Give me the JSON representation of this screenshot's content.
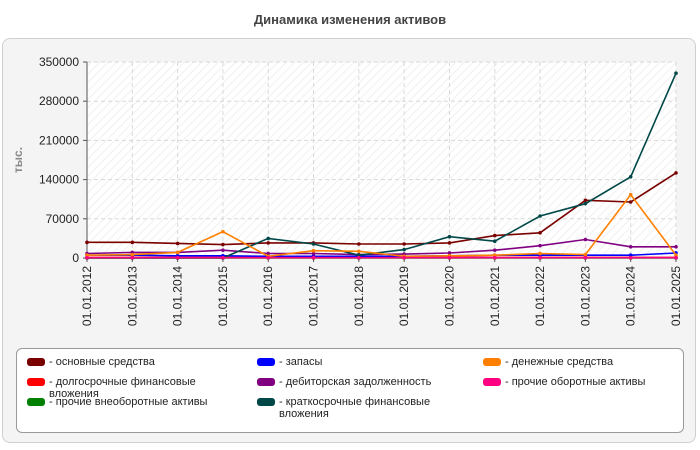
{
  "chart_data": {
    "type": "line",
    "title": "Динамика изменения активов",
    "ylabel": "тыс.",
    "xlabel": "",
    "ylim": [
      0,
      350000
    ],
    "yticks": [
      "0",
      "70000",
      "140000",
      "210000",
      "280000",
      "350000"
    ],
    "categories": [
      "01.01.2012",
      "01.01.2013",
      "01.01.2014",
      "01.01.2015",
      "01.01.2016",
      "01.01.2017",
      "01.01.2018",
      "01.01.2019",
      "01.01.2020",
      "01.01.2021",
      "01.01.2022",
      "01.01.2023",
      "01.01.2024",
      "01.01.2025"
    ],
    "grid": true,
    "legend_position": "bottom",
    "series": [
      {
        "name": "- основные средства",
        "color": "#7a0000",
        "values": [
          28000,
          28000,
          26000,
          24000,
          27000,
          27000,
          25000,
          25000,
          27000,
          40000,
          45000,
          103000,
          100000,
          152000
        ]
      },
      {
        "name": "- долгосрочные финансовые вложения",
        "color": "#ff0000",
        "values": [
          1000,
          1000,
          1000,
          1000,
          1000,
          1000,
          1000,
          1000,
          1000,
          1000,
          1000,
          1000,
          1000,
          1000
        ]
      },
      {
        "name": "- прочие внеоборотные активы",
        "color": "#008000",
        "values": [
          0,
          0,
          0,
          0,
          0,
          0,
          0,
          0,
          0,
          0,
          0,
          0,
          0,
          0
        ]
      },
      {
        "name": "- запасы",
        "color": "#0000ff",
        "values": [
          5000,
          5000,
          4000,
          4000,
          3000,
          3000,
          3000,
          3000,
          4000,
          5000,
          5000,
          5000,
          5000,
          9000
        ]
      },
      {
        "name": "- дебиторская задолженность",
        "color": "#800080",
        "values": [
          8000,
          10000,
          10000,
          14000,
          8000,
          8000,
          6000,
          7000,
          9000,
          14000,
          22000,
          33000,
          20000,
          20000
        ]
      },
      {
        "name": "- краткосрочные финансовые вложения",
        "color": "#004848",
        "values": [
          0,
          0,
          0,
          0,
          35000,
          25000,
          5000,
          15000,
          38000,
          30000,
          75000,
          97000,
          145000,
          330000
        ]
      },
      {
        "name": "- денежные средства",
        "color": "#ff8000",
        "values": [
          5000,
          6000,
          10000,
          47000,
          3000,
          13000,
          12000,
          3000,
          4000,
          5000,
          8000,
          6000,
          113000,
          5000
        ]
      },
      {
        "name": "- прочие оборотные активы",
        "color": "#ff0080",
        "values": [
          500,
          500,
          500,
          500,
          500,
          500,
          500,
          500,
          500,
          500,
          500,
          500,
          500,
          500
        ]
      }
    ]
  }
}
